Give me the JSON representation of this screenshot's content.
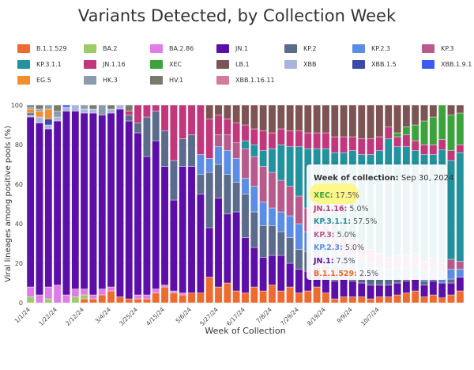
{
  "chart_data": {
    "type": "bar",
    "stacked": true,
    "title": "Variants Detected, by Collection Week",
    "xlabel": "Week of Collection",
    "ylabel": "Viral lineages among positive pools (%)",
    "ylim": [
      0,
      100
    ],
    "yticks": [
      0,
      20,
      40,
      60,
      80,
      100
    ],
    "grid": true,
    "legend_position": "top",
    "x_tick_labels": [
      "1/1/24",
      "1/22/24",
      "2/12/24",
      "3/4/24",
      "3/25/24",
      "4/15/24",
      "5/6/24",
      "5/27/24",
      "6/17/24",
      "7/8/24",
      "7/29/24",
      "8/19/24",
      "9/9/24",
      "10/7/24"
    ],
    "series": [
      {
        "name": "B.1.1.529",
        "color": "#ef6a2f"
      },
      {
        "name": "BA.2",
        "color": "#9ccc65"
      },
      {
        "name": "BA.2.86",
        "color": "#e07ce8"
      },
      {
        "name": "JN.1",
        "color": "#5b0fa8"
      },
      {
        "name": "KP.2",
        "color": "#5b6b8c"
      },
      {
        "name": "KP.2.3",
        "color": "#5b8de6"
      },
      {
        "name": "KP.3",
        "color": "#b85a8c"
      },
      {
        "name": "KP.3.1.1",
        "color": "#21929e"
      },
      {
        "name": "JN.1.16",
        "color": "#c2367c"
      },
      {
        "name": "XEC",
        "color": "#3ca33c"
      },
      {
        "name": "LB.1",
        "color": "#7d5353"
      },
      {
        "name": "XBB",
        "color": "#aab4e0"
      },
      {
        "name": "XBB.1.5",
        "color": "#3b4aa8"
      },
      {
        "name": "XBB.1.9.1",
        "color": "#3a5cf0"
      },
      {
        "name": "EG.5",
        "color": "#f28f2c"
      },
      {
        "name": "HK.3",
        "color": "#8a9bb0"
      },
      {
        "name": "HV.1",
        "color": "#7a7a6a"
      },
      {
        "name": "XBB.1.16.11",
        "color": "#d67a9c"
      }
    ],
    "weeks": [
      {
        "B.1.1.529": 0,
        "BA.2": 3,
        "BA.2.86": 5,
        "JN.1": 86,
        "EG.5": 2,
        "HV.1": 1,
        "HK.3": 1,
        "XBB": 1,
        "XBB.1.5": 1
      },
      {
        "B.1.1.529": 0,
        "BA.2": 0,
        "BA.2.86": 4,
        "JN.1": 87,
        "EG.5": 3,
        "HV.1": 2,
        "XBB": 3,
        "HK.3": 1
      },
      {
        "B.1.1.529": 0,
        "BA.2": 2,
        "BA.2.86": 6,
        "JN.1": 80,
        "EG.5": 5,
        "XBB.1.5": 3,
        "HK.3": 2,
        "XBB": 2
      },
      {
        "B.1.1.529": 0,
        "BA.2": 0,
        "BA.2.86": 9,
        "JN.1": 83,
        "HV.1": 3,
        "XBB": 2,
        "HK.3": 3
      },
      {
        "B.1.1.529": 0,
        "BA.2": 0,
        "BA.2.86": 4,
        "JN.1": 93,
        "XBB.1.9.1": 1,
        "XBB": 2
      },
      {
        "B.1.1.529": 0,
        "BA.2": 3,
        "BA.2.86": 4,
        "JN.1": 90,
        "XBB": 3
      },
      {
        "B.1.1.529": 2,
        "BA.2": 2,
        "BA.2.86": 3,
        "JN.1": 89,
        "HK.3": 2,
        "XBB": 2
      },
      {
        "B.1.1.529": 2,
        "BA.2.86": 2,
        "JN.1": 92,
        "XBB": 2,
        "HV.1": 2
      },
      {
        "B.1.1.529": 4,
        "BA.2.86": 3,
        "JN.1": 88,
        "HK.3": 5
      },
      {
        "B.1.1.529": 6,
        "BA.2.86": 2,
        "JN.1": 88,
        "XBB": 2,
        "HV.1": 2
      },
      {
        "B.1.1.529": 3,
        "BA.2.86": 0,
        "JN.1": 95,
        "XBB": 2
      },
      {
        "B.1.1.529": 2,
        "BA.2.86": 0,
        "JN.1": 90,
        "KP.2": 3,
        "JN.1.16": 2,
        "HV.1": 3
      },
      {
        "B.1.1.529": 2,
        "BA.2.86": 2,
        "JN.1": 82,
        "KP.2": 5,
        "JN.1.16": 9
      },
      {
        "B.1.1.529": 2,
        "BA.2.86": 2,
        "JN.1": 70,
        "KP.2": 20,
        "JN.1.16": 6
      },
      {
        "B.1.1.529": 5,
        "BA.2.86": 2,
        "JN.1": 75,
        "KP.2": 15,
        "JN.1.16": 3
      },
      {
        "B.1.1.529": 8,
        "BA.2.86": 1,
        "JN.1": 60,
        "KP.2": 18,
        "JN.1.16": 13
      },
      {
        "B.1.1.529": 5,
        "BA.2.86": 1,
        "JN.1": 46,
        "KP.2": 20,
        "JN.1.16": 28
      },
      {
        "B.1.1.529": 4,
        "BA.2.86": 1,
        "JN.1": 64,
        "KP.2": 14,
        "JN.1.16": 17
      },
      {
        "B.1.1.529": 5,
        "BA.2.86": 0,
        "JN.1": 64,
        "KP.2": 16,
        "JN.1.16": 15
      },
      {
        "B.1.1.529": 5,
        "BA.2.86": 0,
        "JN.1": 50,
        "KP.2": 10,
        "KP.2.3": 10,
        "JN.1.16": 25
      },
      {
        "B.1.1.529": 13,
        "JN.1": 25,
        "KP.2": 28,
        "KP.2.3": 7,
        "JN.1.16": 20,
        "LB.1": 7
      },
      {
        "B.1.1.529": 8,
        "JN.1": 45,
        "KP.2": 17,
        "KP.2.3": 9,
        "KP.3": 6,
        "JN.1.16": 10,
        "LB.1": 5
      },
      {
        "B.1.1.529": 10,
        "JN.1": 35,
        "KP.2": 20,
        "KP.2.3": 12,
        "KP.3": 8,
        "JN.1.16": 8,
        "LB.1": 7
      },
      {
        "B.1.1.529": 6,
        "JN.1": 40,
        "KP.2": 15,
        "KP.2.3": 12,
        "KP.3": 8,
        "JN.1.16": 10,
        "LB.1": 9
      },
      {
        "B.1.1.529": 5,
        "JN.1": 28,
        "KP.2": 22,
        "KP.2.3": 8,
        "KP.3": 15,
        "KP.3.1.1": 4,
        "JN.1.16": 8,
        "LB.1": 10
      },
      {
        "B.1.1.529": 8,
        "JN.1": 20,
        "KP.2": 18,
        "KP.2.3": 13,
        "KP.3": 15,
        "KP.3.1.1": 6,
        "JN.1.16": 8,
        "LB.1": 12
      },
      {
        "B.1.1.529": 6,
        "JN.1": 17,
        "KP.2": 16,
        "KP.2.3": 12,
        "KP.3": 18,
        "KP.3.1.1": 8,
        "JN.1.16": 10,
        "LB.1": 13
      },
      {
        "B.1.1.529": 9,
        "JN.1": 15,
        "KP.2": 15,
        "KP.2.3": 9,
        "KP.3": 18,
        "KP.3.1.1": 12,
        "JN.1.16": 8,
        "LB.1": 14
      },
      {
        "B.1.1.529": 6,
        "JN.1": 18,
        "KP.2": 12,
        "KP.2.3": 10,
        "KP.3": 16,
        "KP.3.1.1": 18,
        "JN.1.16": 8,
        "LB.1": 12
      },
      {
        "B.1.1.529": 8,
        "JN.1": 12,
        "KP.2": 13,
        "KP.2.3": 11,
        "KP.3": 15,
        "KP.3.1.1": 20,
        "JN.1.16": 8,
        "LB.1": 13
      },
      {
        "B.1.1.529": 5,
        "JN.1": 12,
        "KP.2": 10,
        "KP.2.3": 13,
        "KP.3": 14,
        "KP.3.1.1": 25,
        "JN.1.16": 8,
        "LB.1": 13
      },
      {
        "B.1.1.529": 6,
        "JN.1": 10,
        "KP.2": 10,
        "KP.2.3": 10,
        "KP.3": 12,
        "KP.3.1.1": 30,
        "JN.1.16": 8,
        "LB.1": 14
      },
      {
        "B.1.1.529": 8,
        "JN.1": 10,
        "KP.2": 9,
        "KP.2.3": 9,
        "KP.3": 10,
        "KP.3.1.1": 32,
        "JN.1.16": 8,
        "LB.1": 14
      },
      {
        "B.1.1.529": 5,
        "JN.1": 10,
        "KP.2": 8,
        "KP.2.3": 9,
        "KP.3": 10,
        "KP.3.1.1": 36,
        "JN.1.16": 8,
        "LB.1": 14
      },
      {
        "B.1.1.529": 2,
        "JN.1": 9,
        "KP.2": 7,
        "KP.2.3": 8,
        "KP.3": 9,
        "KP.3.1.1": 41,
        "JN.1.16": 8,
        "LB.1": 16
      },
      {
        "B.1.1.529": 3,
        "JN.1": 9,
        "KP.2": 5,
        "KP.2.3": 8,
        "KP.3": 8,
        "KP.3.1.1": 43,
        "JN.1.16": 8,
        "LB.1": 16
      },
      {
        "B.1.1.529": 3,
        "JN.1": 8,
        "KP.2": 5,
        "KP.2.3": 8,
        "KP.3": 8,
        "KP.3.1.1": 45,
        "JN.1.16": 7,
        "LB.1": 16
      },
      {
        "B.1.1.529": 3,
        "JN.1": 7,
        "KP.2": 5,
        "KP.2.3": 7,
        "KP.3": 7,
        "KP.3.1.1": 46,
        "JN.1.16": 8,
        "LB.1": 17
      },
      {
        "B.1.1.529": 2,
        "JN.1": 7,
        "KP.2": 4,
        "KP.2.3": 7,
        "KP.3": 7,
        "KP.3.1.1": 48,
        "JN.1.16": 8,
        "LB.1": 17
      },
      {
        "B.1.1.529": 3,
        "JN.1": 6,
        "KP.2": 3,
        "KP.2.3": 6,
        "KP.3": 7,
        "KP.3.1.1": 52,
        "JN.1.16": 7,
        "LB.1": 16
      },
      {
        "B.1.1.529": 3,
        "JN.1": 6,
        "KP.2": 3,
        "KP.2.3": 5,
        "KP.3": 6,
        "KP.3.1.1": 60,
        "JN.1.16": 6,
        "LB.1": 11
      },
      {
        "B.1.1.529": 4,
        "JN.1": 6,
        "KP.2": 3,
        "KP.2.3": 5,
        "KP.3": 6,
        "KP.3.1.1": 55,
        "JN.1.16": 5,
        "LB.1": 14,
        "XEC": 2
      },
      {
        "B.1.1.529": 5,
        "JN.1": 6,
        "KP.2": 2,
        "KP.2.3": 5,
        "KP.3": 6,
        "KP.3.1.1": 55,
        "JN.1.16": 6,
        "LB.1": 11,
        "XEC": 4
      },
      {
        "B.1.1.529": 6,
        "JN.1": 6,
        "KP.2": 2,
        "KP.2.3": 5,
        "KP.3": 6,
        "KP.3.1.1": 52,
        "JN.1.16": 5,
        "LB.1": 10,
        "XEC": 8
      },
      {
        "B.1.1.529": 3,
        "JN.1": 6,
        "KP.2": 2,
        "KP.2.3": 5,
        "KP.3": 5,
        "KP.3.1.1": 54,
        "JN.1.16": 5,
        "LB.1": 8,
        "XEC": 12
      },
      {
        "B.1.1.529": 4,
        "JN.1": 7,
        "KP.2": 2,
        "KP.2.3": 5,
        "KP.3": 5,
        "KP.3.1.1": 52,
        "JN.1.16": 5,
        "LB.1": 6,
        "XEC": 14
      },
      {
        "B.1.1.529": 2.5,
        "JN.1": 7.5,
        "KP.2": 0,
        "KP.2.3": 5,
        "KP.3": 5,
        "KP.3.1.1": 57.5,
        "JN.1.16": 5,
        "LB.1": 0,
        "XEC": 17.5
      },
      {
        "B.1.1.529": 4,
        "JN.1": 6,
        "KP.2": 2,
        "KP.2.3": 5,
        "KP.3": 5,
        "KP.3.1.1": 50,
        "JN.1.16": 5,
        "LB.1": 5,
        "XEC": 18
      },
      {
        "B.1.1.529": 6,
        "JN.1": 7,
        "KP.2": 0,
        "KP.2.3": 4,
        "KP.3": 4,
        "KP.3.1.1": 55,
        "JN.1.16": 4,
        "LB.1": 4,
        "XEC": 16
      }
    ],
    "tooltip": {
      "header_label": "Week of collection:",
      "header_value": "Sep 30, 2024",
      "rows": [
        {
          "name": "XEC:",
          "value": "17.5%",
          "color": "#3ca33c"
        },
        {
          "name": "JN.1.16:",
          "value": "5.0%",
          "color": "#c2367c"
        },
        {
          "name": "KP.3.1.1:",
          "value": "57.5%",
          "color": "#21929e"
        },
        {
          "name": "KP.3:",
          "value": "5.0%",
          "color": "#b85a8c"
        },
        {
          "name": "KP.2.3:",
          "value": "5.0%",
          "color": "#5b8de6"
        },
        {
          "name": "JN.1:",
          "value": "7.5%",
          "color": "#5b0fa8"
        },
        {
          "name": "B.1.1.529:",
          "value": "2.5%",
          "color": "#ef6a2f"
        }
      ]
    }
  }
}
